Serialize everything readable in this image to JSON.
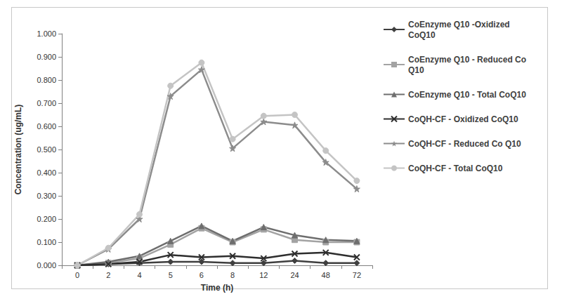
{
  "chart_data": {
    "type": "line",
    "x_label": "Time (h)",
    "y_label": "Concentration (ug/mL)",
    "categories": [
      "0",
      "2",
      "4",
      "5",
      "6",
      "8",
      "12",
      "24",
      "48",
      "72"
    ],
    "ylim": [
      0,
      1
    ],
    "yticks": [
      {
        "value": 0,
        "label": "0.000"
      },
      {
        "value": 0.1,
        "label": "0.100"
      },
      {
        "value": 0.2,
        "label": "0.200"
      },
      {
        "value": 0.3,
        "label": "0.300"
      },
      {
        "value": 0.4,
        "label": "0.400"
      },
      {
        "value": 0.5,
        "label": "0.500"
      },
      {
        "value": 0.6,
        "label": "0.600"
      },
      {
        "value": 0.7,
        "label": "0.700"
      },
      {
        "value": 0.8,
        "label": "0.800"
      },
      {
        "value": 0.9,
        "label": "0.900"
      },
      {
        "value": 1,
        "label": "1.000"
      }
    ],
    "grid": false,
    "legend": "right",
    "series": [
      {
        "name": "CoEnzyme Q10 -Oxidized CoQ10",
        "color": "#3f3f3f",
        "marker": "diamond",
        "values": [
          0,
          0.005,
          0.01,
          0.015,
          0.015,
          0.01,
          0.01,
          0.02,
          0.01,
          0.01
        ]
      },
      {
        "name": "CoEnzyme Q10 - Reduced Co Q10",
        "color": "#a3a3a3",
        "marker": "square",
        "values": [
          0,
          0.01,
          0.03,
          0.09,
          0.16,
          0.1,
          0.155,
          0.11,
          0.1,
          0.1
        ]
      },
      {
        "name": "CoEnzyme Q10 - Total CoQ10",
        "color": "#6e6e6e",
        "marker": "triangle",
        "values": [
          0,
          0.015,
          0.04,
          0.105,
          0.17,
          0.105,
          0.165,
          0.13,
          0.11,
          0.105
        ]
      },
      {
        "name": "CoQH-CF - Oxidized CoQ10",
        "color": "#2e2e2e",
        "marker": "x",
        "values": [
          0,
          0.005,
          0.015,
          0.045,
          0.035,
          0.04,
          0.03,
          0.05,
          0.055,
          0.035
        ]
      },
      {
        "name": "CoQH-CF - Reduced Co Q10",
        "color": "#8c8c8c",
        "marker": "star",
        "values": [
          0,
          0.07,
          0.2,
          0.73,
          0.845,
          0.505,
          0.62,
          0.605,
          0.445,
          0.33
        ]
      },
      {
        "name": "CoQH-CF - Total CoQ10",
        "color": "#c4c4c4",
        "marker": "circle",
        "values": [
          0,
          0.075,
          0.22,
          0.775,
          0.875,
          0.545,
          0.645,
          0.65,
          0.495,
          0.365
        ]
      }
    ]
  }
}
